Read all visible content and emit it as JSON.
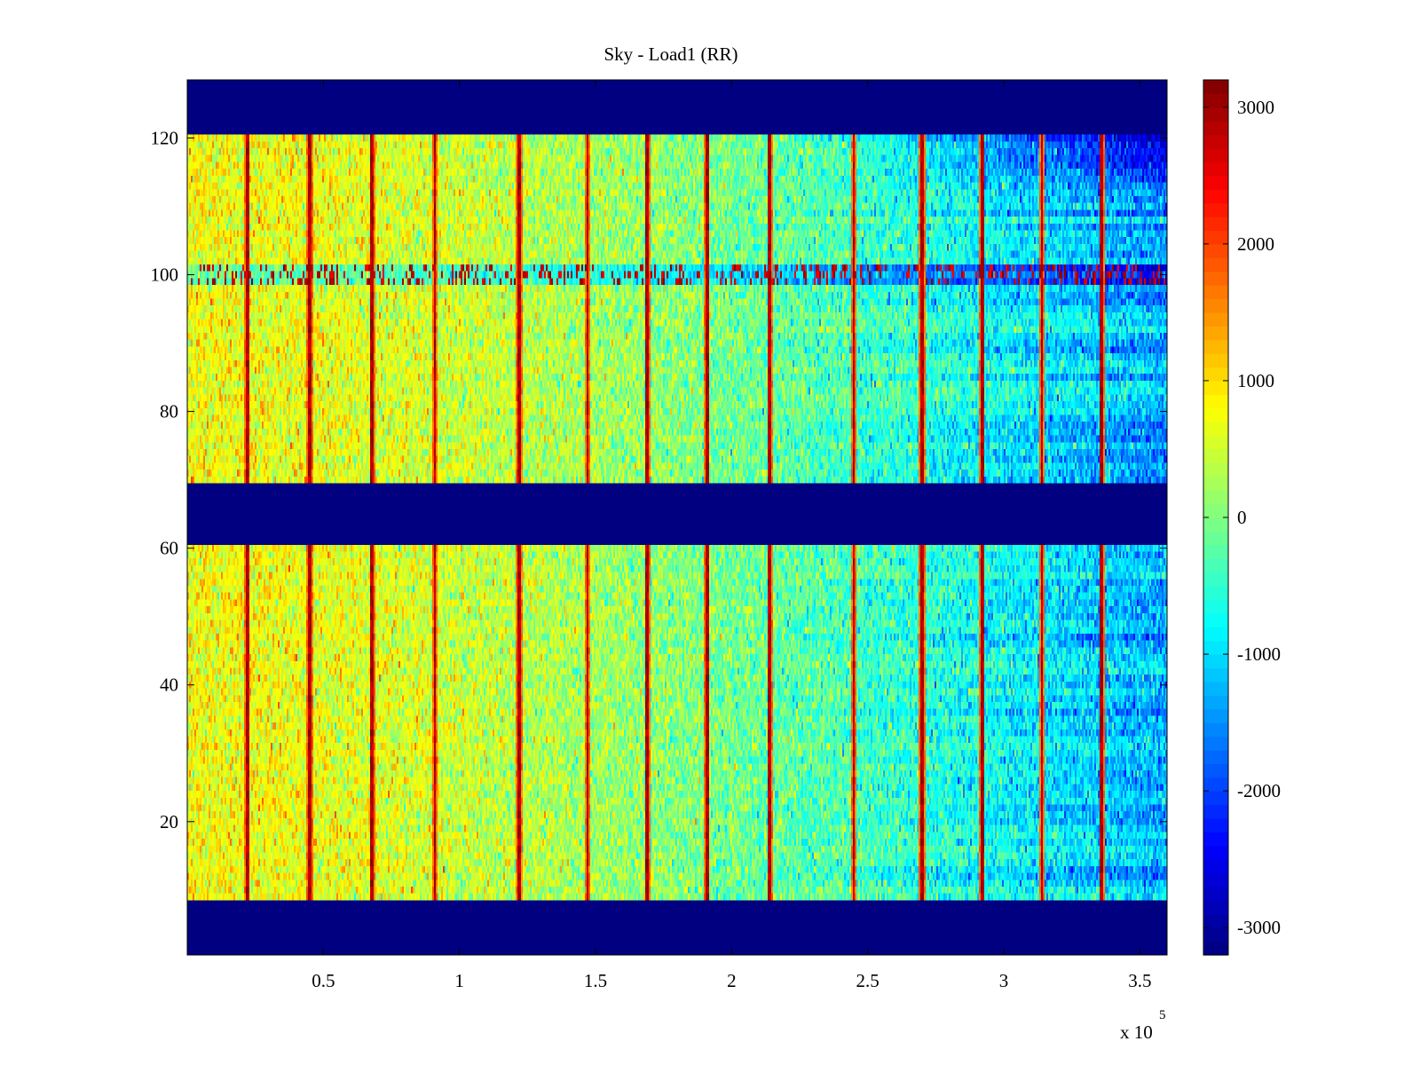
{
  "chart_data": {
    "type": "heatmap",
    "title": "Sky - Load1 (RR)",
    "xlabel": "",
    "ylabel": "",
    "x_exponent_label": "x 10",
    "x_exponent_power": "5",
    "xlim": [
      0,
      3.6
    ],
    "ylim": [
      1,
      128
    ],
    "x_ticks": [
      0.5,
      1,
      1.5,
      2,
      2.5,
      3,
      3.5
    ],
    "x_tick_labels": [
      "0.5",
      "1",
      "1.5",
      "2",
      "2.5",
      "3",
      "3.5"
    ],
    "y_ticks": [
      20,
      40,
      60,
      80,
      100,
      120
    ],
    "y_tick_labels": [
      "20",
      "40",
      "60",
      "80",
      "100",
      "120"
    ],
    "clim": [
      -3200,
      3200
    ],
    "colorbar_ticks": [
      3000,
      2000,
      1000,
      0,
      -1000,
      -2000,
      -3000
    ],
    "colorbar_tick_labels": [
      "3000",
      "2000",
      "1000",
      "0",
      "-1000",
      "-2000",
      "-3000"
    ],
    "colormap": "jet",
    "masked_channel_ranges": [
      [
        1,
        8
      ],
      [
        61,
        69
      ],
      [
        121,
        128
      ]
    ],
    "rfi_channel": 100,
    "spike_columns_x": [
      0.22,
      0.45,
      0.68,
      0.91,
      1.22,
      1.47,
      1.69,
      1.91,
      2.14,
      2.45,
      2.7,
      2.92,
      3.14,
      3.36
    ],
    "trend_description": "values drift from about +800 at left to about -1500 at right"
  },
  "colors": {
    "masked": "#00008F",
    "axis": "#000000",
    "background": "#ffffff"
  }
}
